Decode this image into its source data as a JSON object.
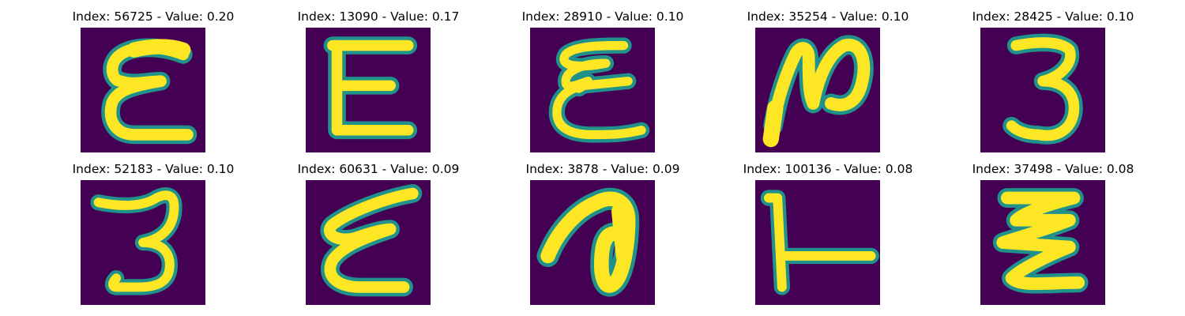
{
  "colors": {
    "background": "#440154",
    "mid": "#21918c",
    "bright": "#fde725"
  },
  "panels": [
    {
      "title": "Index: 56725 - Value: 0.20",
      "glyph": "epsilon-wide"
    },
    {
      "title": "Index: 13090 - Value: 0.17",
      "glyph": "epsilon-block"
    },
    {
      "title": "Index: 28910 - Value: 0.10",
      "glyph": "epsilon-loopy"
    },
    {
      "title": "Index: 35254 - Value: 0.10",
      "glyph": "n-shape"
    },
    {
      "title": "Index: 28425 - Value: 0.10",
      "glyph": "three"
    },
    {
      "title": "Index: 52183 - Value: 0.10",
      "glyph": "three-tall"
    },
    {
      "title": "Index: 60631 - Value: 0.09",
      "glyph": "epsilon-slanted"
    },
    {
      "title": "Index: 3878 - Value: 0.09",
      "glyph": "loop-curl"
    },
    {
      "title": "Index: 100136 - Value: 0.08",
      "glyph": "t-rotated"
    },
    {
      "title": "Index: 37498 - Value: 0.08",
      "glyph": "zigzag"
    }
  ]
}
